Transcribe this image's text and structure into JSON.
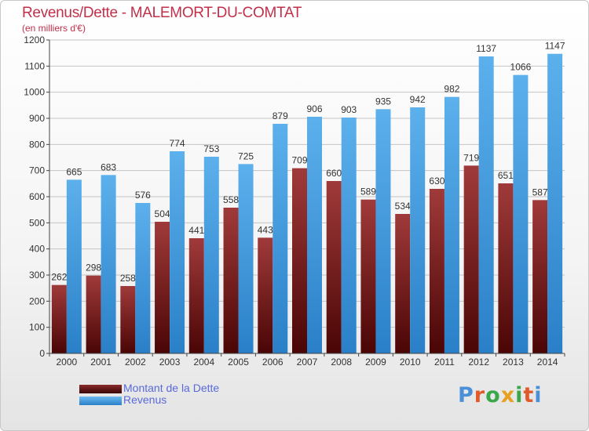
{
  "header": {
    "title": "Revenus/Dette - MALEMORT-DU-COMTAT",
    "subtitle": "(en milliers d'€)"
  },
  "legend": [
    {
      "label": "Montant de la Dette",
      "color": "#7a1a1a"
    },
    {
      "label": "Revenus",
      "color": "#3a9be0"
    }
  ],
  "logo": {
    "text": "Proxiti"
  },
  "colors": {
    "title": "#c0304a",
    "dette_top": "#a03a3a",
    "dette_bottom": "#4a0505",
    "revenus_top": "#5cb0ec",
    "revenus_bottom": "#2a80c8"
  },
  "chart_data": {
    "type": "bar",
    "title": "Revenus/Dette - MALEMORT-DU-COMTAT",
    "subtitle": "(en milliers d'€)",
    "categories": [
      "2000",
      "2001",
      "2002",
      "2003",
      "2004",
      "2005",
      "2006",
      "2007",
      "2008",
      "2009",
      "2010",
      "2011",
      "2012",
      "2013",
      "2014"
    ],
    "series": [
      {
        "name": "Montant de la Dette",
        "values": [
          262,
          298,
          258,
          504,
          441,
          558,
          443,
          709,
          660,
          589,
          534,
          630,
          719,
          651,
          587
        ]
      },
      {
        "name": "Revenus",
        "values": [
          665,
          683,
          576,
          774,
          753,
          725,
          879,
          906,
          903,
          935,
          942,
          982,
          1137,
          1066,
          1147
        ]
      }
    ],
    "ylim": [
      0,
      1200
    ],
    "yticks": [
      0,
      100,
      200,
      300,
      400,
      500,
      600,
      700,
      800,
      900,
      1000,
      1100,
      1200
    ],
    "grid": true,
    "legend_position": "bottom-left",
    "xlabel": "",
    "ylabel": ""
  }
}
